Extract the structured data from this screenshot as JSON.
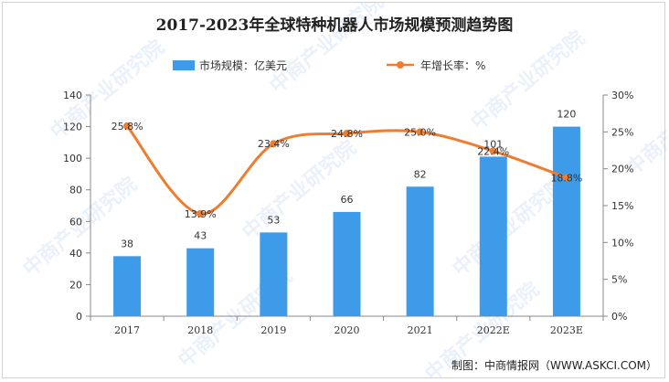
{
  "chart_data": {
    "type": "bar",
    "title": "2017-2023年全球特种机器人市场规模预测趋势图",
    "categories": [
      "2017",
      "2018",
      "2019",
      "2020",
      "2021",
      "2022E",
      "2023E"
    ],
    "series": [
      {
        "name": "市场规模：亿美元",
        "kind": "bar",
        "axis": "left",
        "values": [
          38,
          43,
          53,
          66,
          82,
          101,
          120
        ],
        "labels": [
          "38",
          "43",
          "53",
          "66",
          "82",
          "101",
          "120"
        ]
      },
      {
        "name": "年增长率：%",
        "kind": "line",
        "axis": "right",
        "values": [
          25.8,
          13.9,
          23.4,
          24.8,
          25.0,
          22.4,
          18.8
        ],
        "labels": [
          "25.8%",
          "13.9%",
          "23.4%",
          "24.8%",
          "25.0%",
          "22.4%",
          "18.8%"
        ]
      }
    ],
    "y_left": {
      "min": 0,
      "max": 140,
      "step": 20,
      "ticks": [
        "0",
        "20",
        "40",
        "60",
        "80",
        "100",
        "120",
        "140"
      ]
    },
    "y_right": {
      "min": 0,
      "max": 30,
      "step": 5,
      "ticks": [
        "0%",
        "5%",
        "10%",
        "15%",
        "20%",
        "25%",
        "30%"
      ]
    },
    "legend_position": "top-center",
    "grid": false,
    "colors": {
      "bar": "#3d9be9",
      "line": "#ed7d31"
    }
  },
  "source": "制图：中商情报网（WWW.ASKCI.COM）",
  "watermark": "中商产业研究院"
}
